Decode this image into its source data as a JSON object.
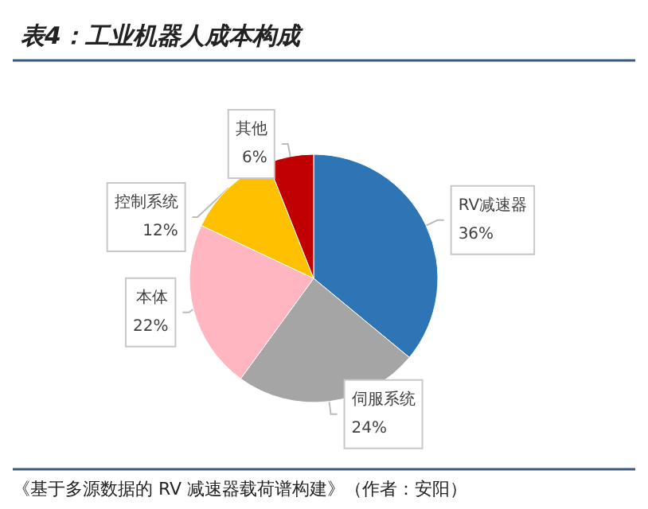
{
  "chart_data": {
    "type": "pie",
    "title": "表4：工业机器人成本构成",
    "annotations": [
      "《基于多源数据的 RV 减速器载荷谱构建》（作者：安阳）"
    ],
    "categories": [
      "RV减速器",
      "伺服系统",
      "本体",
      "控制系统",
      "其他"
    ],
    "values": [
      36,
      24,
      22,
      12,
      6
    ],
    "value_labels": [
      "36%",
      "24%",
      "22%",
      "12%",
      "6%"
    ],
    "colors": [
      "#2e75b6",
      "#a5a5a5",
      "#ffb6c1",
      "#ffc000",
      "#c00000"
    ],
    "legend": false
  }
}
